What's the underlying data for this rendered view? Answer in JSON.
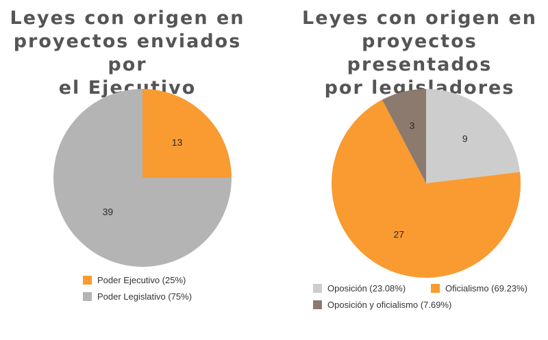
{
  "colors": {
    "orange": "#f99b31",
    "gray": "#b4b4b4",
    "lightgray": "#cdcdcd",
    "brown": "#8c7a6f"
  },
  "chart_data": [
    {
      "type": "pie",
      "title_lines": [
        "Leyes con origen en",
        "proyectos enviados por",
        "el Ejecutivo"
      ],
      "slices": [
        {
          "label": "Poder Ejecutivo (25%)",
          "value": 13,
          "display": "13",
          "color": "#f99b31"
        },
        {
          "label": "Poder Legislativo (75%)",
          "value": 39,
          "display": "39",
          "color": "#b4b4b4"
        }
      ]
    },
    {
      "type": "pie",
      "title_lines": [
        "Leyes con origen en",
        "proyectos presentados",
        "por legisladores"
      ],
      "slices": [
        {
          "label": "Oposición (23.08%)",
          "value": 9,
          "display": "9",
          "color": "#cdcdcd"
        },
        {
          "label": "Oficialismo (69.23%)",
          "value": 27,
          "display": "27",
          "color": "#f99b31"
        },
        {
          "label": "Oposición y oficialismo (7.69%)",
          "value": 3,
          "display": "3",
          "color": "#8c7a6f"
        }
      ]
    }
  ]
}
